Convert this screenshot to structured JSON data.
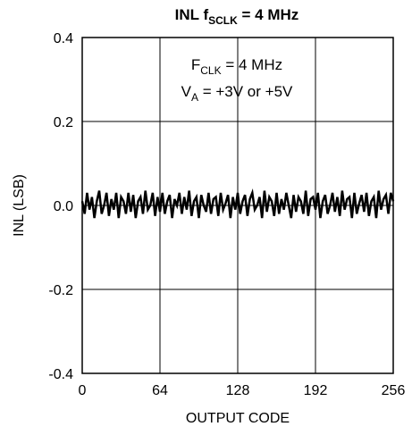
{
  "chart_data": {
    "type": "line",
    "title": {
      "main": "INL f",
      "sub": "SCLK",
      "rest": " = 4 MHz"
    },
    "xlabel": "OUTPUT CODE",
    "ylabel": "INL (LSB)",
    "xlim": [
      0,
      256
    ],
    "ylim": [
      -0.4,
      0.4
    ],
    "x_ticks": [
      0,
      64,
      128,
      192,
      256
    ],
    "y_ticks": [
      0.4,
      0.2,
      0.0,
      -0.2,
      -0.4
    ],
    "x_tick_labels": [
      "0",
      "64",
      "128",
      "192",
      "256"
    ],
    "y_tick_labels": [
      "0.4",
      "0.2",
      "0.0",
      "-0.2",
      "-0.4"
    ],
    "grid": true,
    "annotations": [
      {
        "main": "F",
        "sub": "CLK",
        "rest": " = 4 MHz"
      },
      {
        "main": "V",
        "sub": "A",
        "rest": " = +3V or +5V"
      }
    ],
    "series": [
      {
        "x": [
          0,
          2,
          4,
          6,
          8,
          10,
          12,
          14,
          16,
          18,
          20,
          22,
          24,
          26,
          28,
          30,
          32,
          34,
          36,
          38,
          40,
          42,
          44,
          46,
          48,
          50,
          52,
          54,
          56,
          58,
          60,
          62,
          64,
          66,
          68,
          70,
          72,
          74,
          76,
          78,
          80,
          82,
          84,
          86,
          88,
          90,
          92,
          94,
          96,
          98,
          100,
          102,
          104,
          106,
          108,
          110,
          112,
          114,
          116,
          118,
          120,
          122,
          124,
          126,
          128,
          130,
          132,
          134,
          136,
          138,
          140,
          142,
          144,
          146,
          148,
          150,
          152,
          154,
          156,
          158,
          160,
          162,
          164,
          166,
          168,
          170,
          172,
          174,
          176,
          178,
          180,
          182,
          184,
          186,
          188,
          190,
          192,
          194,
          196,
          198,
          200,
          202,
          204,
          206,
          208,
          210,
          212,
          214,
          216,
          218,
          220,
          222,
          224,
          226,
          228,
          230,
          232,
          234,
          236,
          238,
          240,
          242,
          244,
          246,
          248,
          250,
          252,
          254,
          256
        ],
        "y": [
          0.01,
          -0.02,
          0.03,
          -0.01,
          0.02,
          -0.03,
          0.01,
          0.035,
          -0.02,
          0.0,
          0.03,
          -0.025,
          0.015,
          -0.01,
          0.03,
          -0.03,
          0.02,
          0.01,
          -0.02,
          0.03,
          -0.015,
          0.025,
          -0.03,
          0.01,
          0.02,
          -0.02,
          0.035,
          -0.01,
          0.0,
          0.03,
          -0.025,
          0.02,
          -0.015,
          0.03,
          -0.02,
          0.01,
          0.025,
          -0.03,
          0.015,
          0.0,
          0.03,
          -0.02,
          0.02,
          -0.01,
          0.035,
          -0.025,
          0.01,
          0.02,
          -0.03,
          0.025,
          0.0,
          -0.015,
          0.03,
          -0.02,
          0.015,
          0.02,
          -0.025,
          0.03,
          -0.01,
          0.005,
          0.025,
          -0.03,
          0.02,
          -0.01,
          0.03,
          -0.02,
          0.01,
          0.025,
          -0.025,
          0.015,
          0.03,
          -0.01,
          0.0,
          0.02,
          -0.03,
          0.035,
          -0.015,
          0.02,
          0.01,
          -0.025,
          0.03,
          -0.02,
          0.015,
          -0.01,
          0.03,
          0.0,
          -0.03,
          0.025,
          -0.015,
          0.02,
          0.01,
          -0.02,
          0.035,
          -0.025,
          0.015,
          0.02,
          -0.01,
          0.03,
          -0.03,
          0.01,
          0.025,
          -0.02,
          0.0,
          0.03,
          -0.015,
          0.02,
          -0.025,
          0.035,
          -0.01,
          0.015,
          0.02,
          -0.03,
          0.03,
          -0.02,
          0.005,
          0.025,
          -0.015,
          0.03,
          -0.025,
          0.01,
          0.02,
          -0.03,
          0.035,
          -0.01,
          0.015,
          0.025,
          -0.02,
          0.03,
          0.01
        ]
      }
    ]
  }
}
